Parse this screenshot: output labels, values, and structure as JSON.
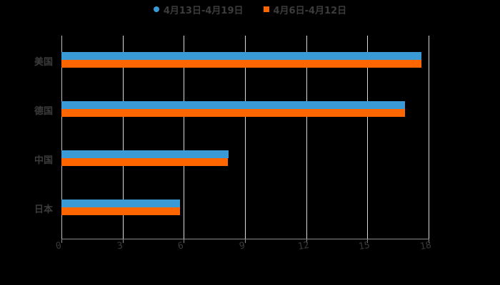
{
  "chart_data": {
    "type": "bar",
    "orientation": "horizontal",
    "title": "",
    "categories": [
      "美国",
      "德国",
      "中国",
      "日本"
    ],
    "series": [
      {
        "name": "4月13日-4月19日",
        "color": "#3A9AD6",
        "marker": "circle",
        "values": [
          17.65,
          16.84,
          8.19,
          5.81
        ]
      },
      {
        "name": "4月6日-4月12日",
        "color": "#FF6600",
        "marker": "square",
        "values": [
          17.65,
          16.84,
          8.16,
          5.81
        ]
      }
    ],
    "xlabel": "",
    "ylabel": "",
    "xlim": [
      0,
      18
    ],
    "xticks": [
      "0",
      "3",
      "6",
      "9",
      "12",
      "15",
      "18"
    ],
    "grid": "vertical",
    "legend_position": "top"
  },
  "legend": {
    "series_1": "4月13日-4月19日",
    "series_2": "4月6日-4月12日"
  }
}
